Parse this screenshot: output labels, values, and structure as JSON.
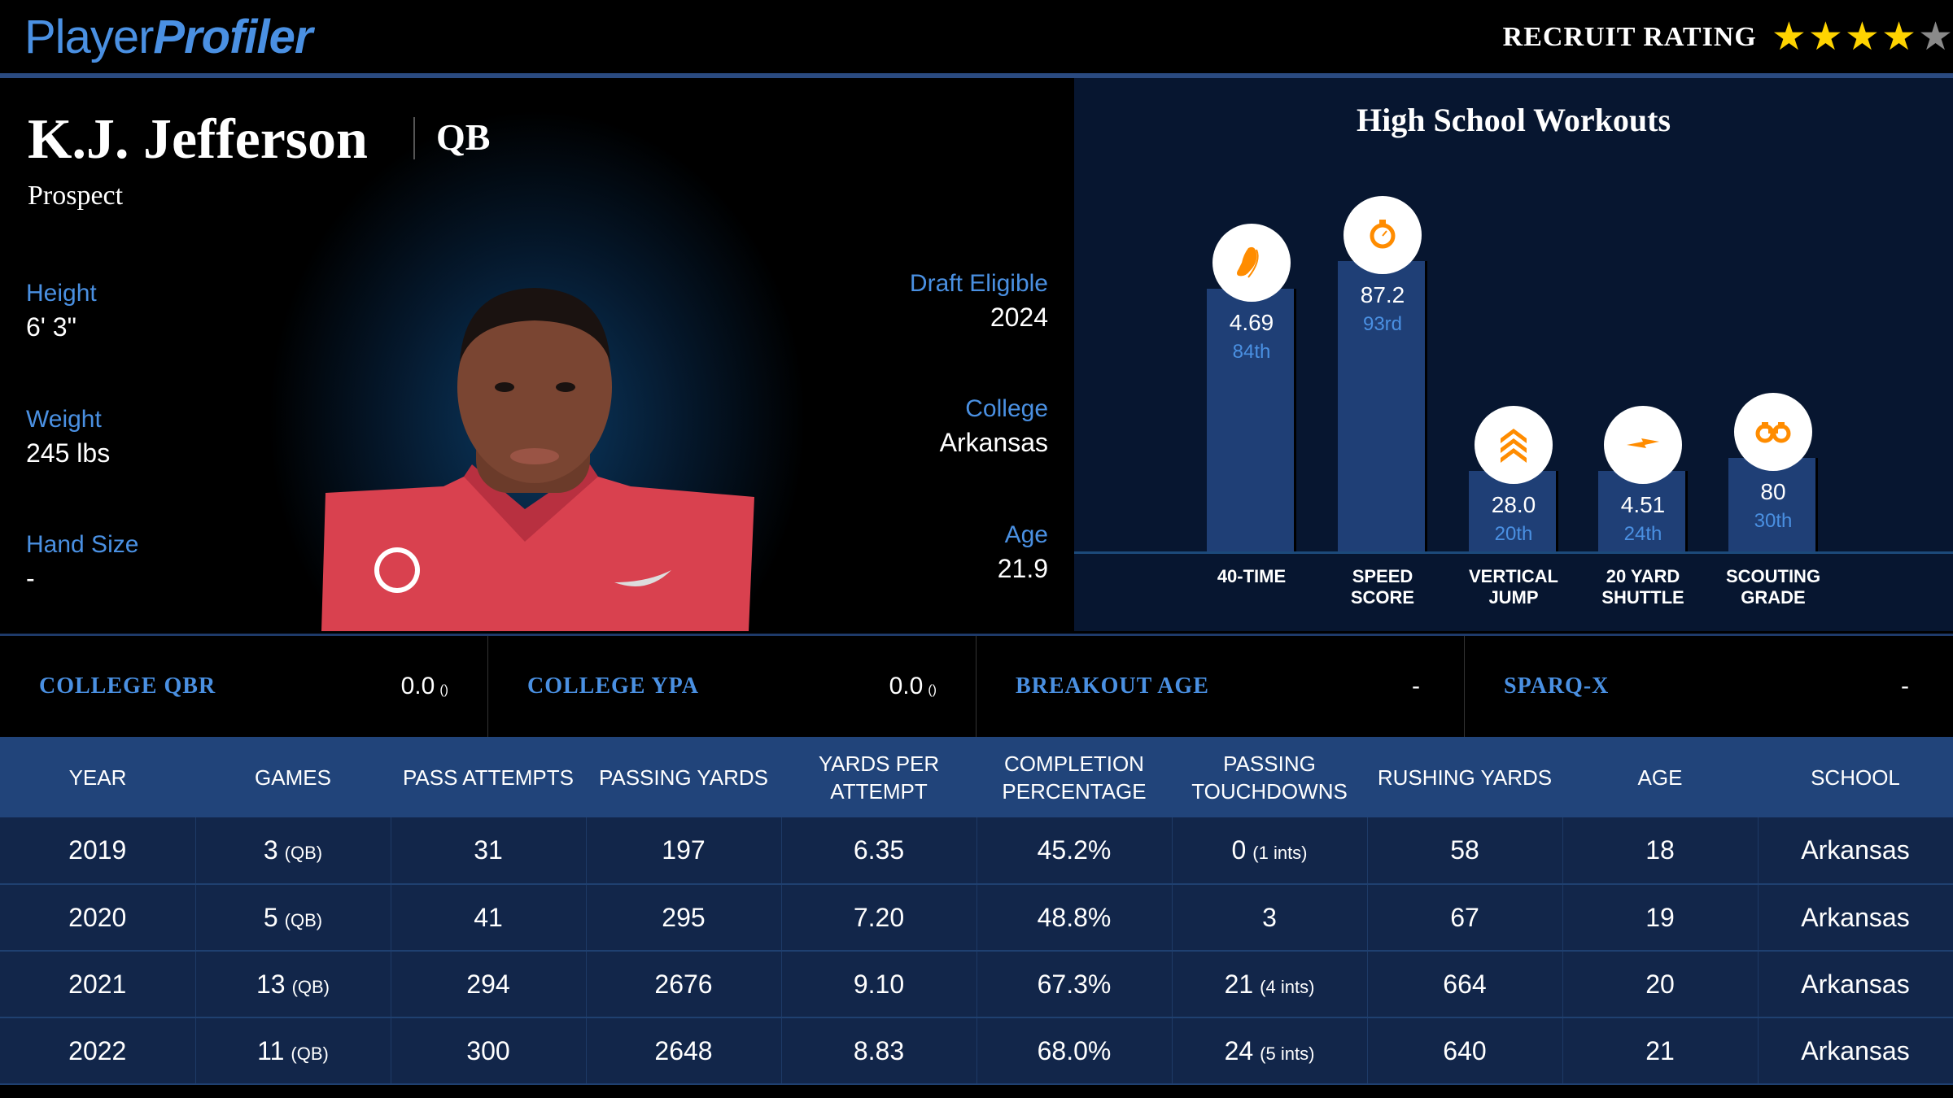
{
  "header": {
    "logo_a": "Player",
    "logo_b": "Profiler",
    "recruit_label": "RECRUIT RATING",
    "stars": 4,
    "stars_max": 5
  },
  "player": {
    "name": "K.J. Jefferson",
    "position": "QB",
    "status": "Prospect",
    "left_stats": [
      {
        "label": "Height",
        "value": "6' 3\""
      },
      {
        "label": "Weight",
        "value": "245 lbs"
      },
      {
        "label": "Hand Size",
        "value": "-"
      }
    ],
    "right_stats": [
      {
        "label": "Draft Eligible",
        "value": "2024"
      },
      {
        "label": "College",
        "value": "Arkansas"
      },
      {
        "label": "Age",
        "value": "21.9"
      }
    ]
  },
  "workouts": {
    "title": "High School Workouts",
    "items": [
      {
        "label1": "40-TIME",
        "label2": "",
        "value": "4.69",
        "pct": "84th",
        "pct_num": 84,
        "icon": "shoe-icon"
      },
      {
        "label1": "SPEED",
        "label2": "SCORE",
        "value": "87.2",
        "pct": "93rd",
        "pct_num": 93,
        "icon": "stopwatch-icon"
      },
      {
        "label1": "VERTICAL",
        "label2": "JUMP",
        "value": "28.0",
        "pct": "20th",
        "pct_num": 20,
        "icon": "chevrons-up-icon"
      },
      {
        "label1": "20 YARD",
        "label2": "SHUTTLE",
        "value": "4.51",
        "pct": "24th",
        "pct_num": 24,
        "icon": "lightning-icon"
      },
      {
        "label1": "SCOUTING",
        "label2": "GRADE",
        "value": "80",
        "pct": "30th",
        "pct_num": 30,
        "icon": "binoculars-icon"
      }
    ]
  },
  "metrics": [
    {
      "label": "COLLEGE QBR",
      "value": "0.0",
      "rank": "()"
    },
    {
      "label": "COLLEGE YPA",
      "value": "0.0",
      "rank": "()"
    },
    {
      "label": "BREAKOUT AGE",
      "value": "-",
      "rank": ""
    },
    {
      "label": "SPARQ-X",
      "value": "-",
      "rank": ""
    }
  ],
  "table": {
    "headers": [
      "YEAR",
      "GAMES",
      "PASS ATTEMPTS",
      "PASSING YARDS",
      "YARDS PER ATTEMPT",
      "COMPLETION PERCENTAGE",
      "PASSING TOUCHDOWNS",
      "RUSHING YARDS",
      "AGE",
      "SCHOOL"
    ],
    "rows": [
      {
        "year": "2019",
        "games": "3",
        "games_pos": "(QB)",
        "att": "31",
        "yds": "197",
        "ypa": "6.35",
        "comp": "45.2%",
        "td": "0",
        "ints": "(1 ints)",
        "rush": "58",
        "age": "18",
        "school": "Arkansas"
      },
      {
        "year": "2020",
        "games": "5",
        "games_pos": "(QB)",
        "att": "41",
        "yds": "295",
        "ypa": "7.20",
        "comp": "48.8%",
        "td": "3",
        "ints": "",
        "rush": "67",
        "age": "19",
        "school": "Arkansas"
      },
      {
        "year": "2021",
        "games": "13",
        "games_pos": "(QB)",
        "att": "294",
        "yds": "2676",
        "ypa": "9.10",
        "comp": "67.3%",
        "td": "21",
        "ints": "(4 ints)",
        "rush": "664",
        "age": "20",
        "school": "Arkansas"
      },
      {
        "year": "2022",
        "games": "11",
        "games_pos": "(QB)",
        "att": "300",
        "yds": "2648",
        "ypa": "8.83",
        "comp": "68.0%",
        "td": "24",
        "ints": "(5 ints)",
        "rush": "640",
        "age": "21",
        "school": "Arkansas"
      }
    ]
  },
  "colors": {
    "accent": "#4a90e2",
    "icon": "#ff8c00",
    "star": "#ffd400"
  }
}
